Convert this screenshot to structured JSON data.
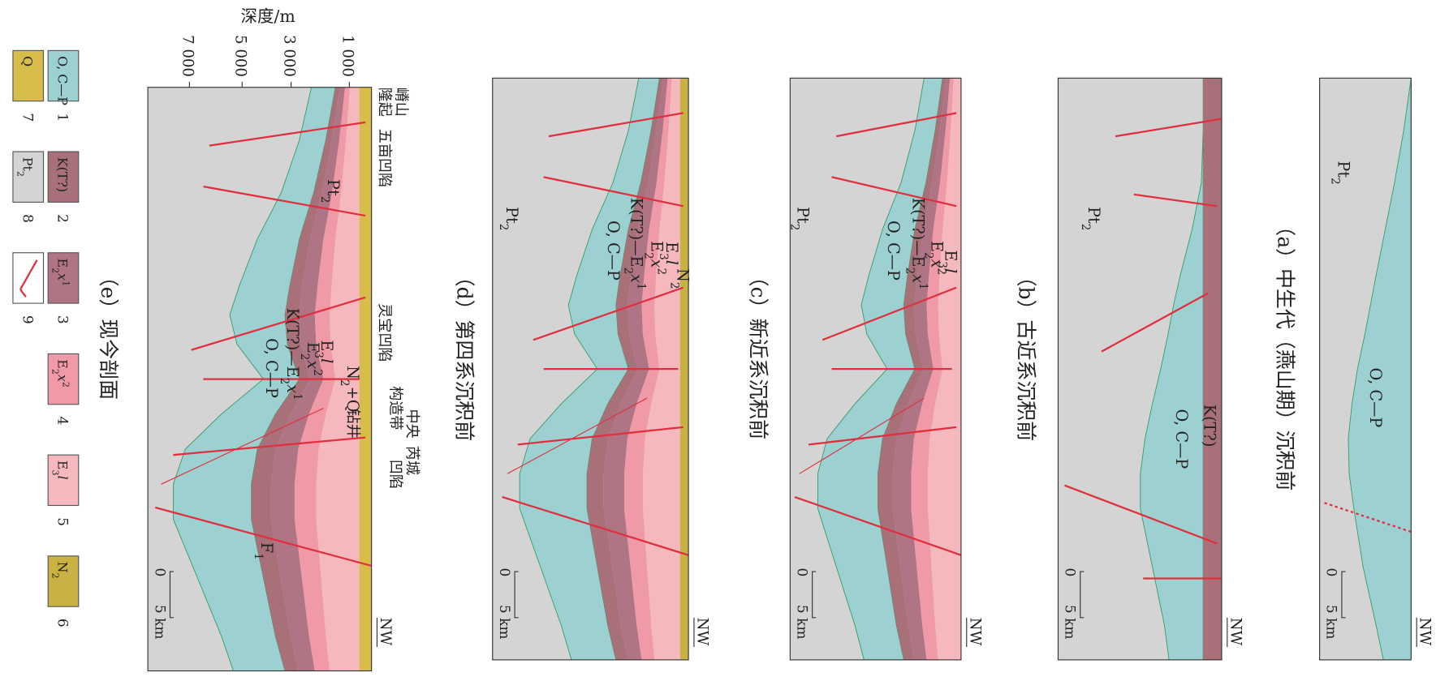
{
  "depth_axis": {
    "title": "深度/m",
    "ticks": [
      "1 000",
      "3 000",
      "5 000",
      "7 000"
    ]
  },
  "panels": [
    {
      "caption": "（a）中生代（燕山期）沉积前",
      "direction": "NW",
      "scale": {
        "start": "0",
        "end": "5 km"
      },
      "labels": {
        "basement": [
          "Pt",
          "2"
        ],
        "paleozoic": [
          "O, C—P"
        ]
      }
    },
    {
      "caption": "（b）古近系沉积前",
      "direction": "NW",
      "scale": {
        "start": "0",
        "end": "5 km"
      },
      "labels": {
        "basement": [
          "Pt",
          "2"
        ],
        "cretaceous": [
          "K(T?)"
        ],
        "paleozoic": [
          "O, C—P"
        ]
      }
    },
    {
      "caption": "（c）新近系沉积前",
      "direction": "NW",
      "scale": {
        "start": "0",
        "end": "5 km"
      },
      "labels": {
        "basement": [
          "Pt",
          "2"
        ],
        "e3l": [
          "E",
          "3",
          "l"
        ],
        "e2x2": [
          "E",
          "2",
          "x",
          "2"
        ],
        "k_e2x1": [
          "K(T?)—E",
          "2",
          "x",
          "1"
        ],
        "paleozoic": [
          "O, C—P"
        ]
      }
    },
    {
      "caption": "（d）第四系沉积前",
      "direction": "NW",
      "scale": {
        "start": "0",
        "end": "5 km"
      },
      "labels": {
        "basement": [
          "Pt",
          "2"
        ],
        "n2": [
          "N",
          "2"
        ],
        "e3l": [
          "E",
          "3",
          "l"
        ],
        "e2x2": [
          "E",
          "2",
          "x",
          "2"
        ],
        "k_e2x1": [
          "K(T?)—E",
          "2",
          "x",
          "1"
        ],
        "paleozoic": [
          "O, C—P"
        ]
      }
    },
    {
      "caption": "（e）现今剖面",
      "direction": "NW",
      "scale": {
        "start": "0",
        "end": "5 km"
      },
      "labels": {
        "basement": [
          "Pt",
          "2"
        ],
        "n2q": [
          "N",
          "2",
          "+Q"
        ],
        "e3l": [
          "E",
          "3",
          "l"
        ],
        "e2x2": [
          "E",
          "2",
          "x",
          "2"
        ],
        "k_e2x1": [
          "K(T?)—E",
          "2",
          "x",
          "1"
        ],
        "paleozoic": [
          "O, C—P"
        ],
        "fault": [
          "F",
          "1"
        ]
      },
      "regions": [
        "嵴山",
        "隆起",
        "五亩凹陷",
        "灵宝凹陷",
        "中央",
        "构造带",
        "芮城",
        "凹陷",
        "钻井"
      ]
    }
  ],
  "legend": [
    {
      "number": "1",
      "label": [
        "O, C—P"
      ],
      "color": "#9dd0d0"
    },
    {
      "number": "2",
      "label": [
        "K(T?)"
      ],
      "color": "#a87078"
    },
    {
      "number": "3",
      "label": [
        "E",
        "2",
        "x",
        "1"
      ],
      "color": "#b07585"
    },
    {
      "number": "4",
      "label": [
        "E",
        "2",
        "x",
        "2"
      ],
      "color": "#f09aa8"
    },
    {
      "number": "5",
      "label": [
        "E",
        "3",
        "l"
      ],
      "color": "#f5b8bc"
    },
    {
      "number": "6",
      "label": [
        "N",
        "2"
      ],
      "color": "#c9b243"
    },
    {
      "number": "7",
      "label": [
        "Q"
      ],
      "color": "#d9bd4a"
    },
    {
      "number": "8",
      "label": [
        "Pt",
        "2"
      ],
      "color": "#d4d4d4"
    },
    {
      "number": "9",
      "label": [],
      "color": "#ffffff"
    }
  ]
}
